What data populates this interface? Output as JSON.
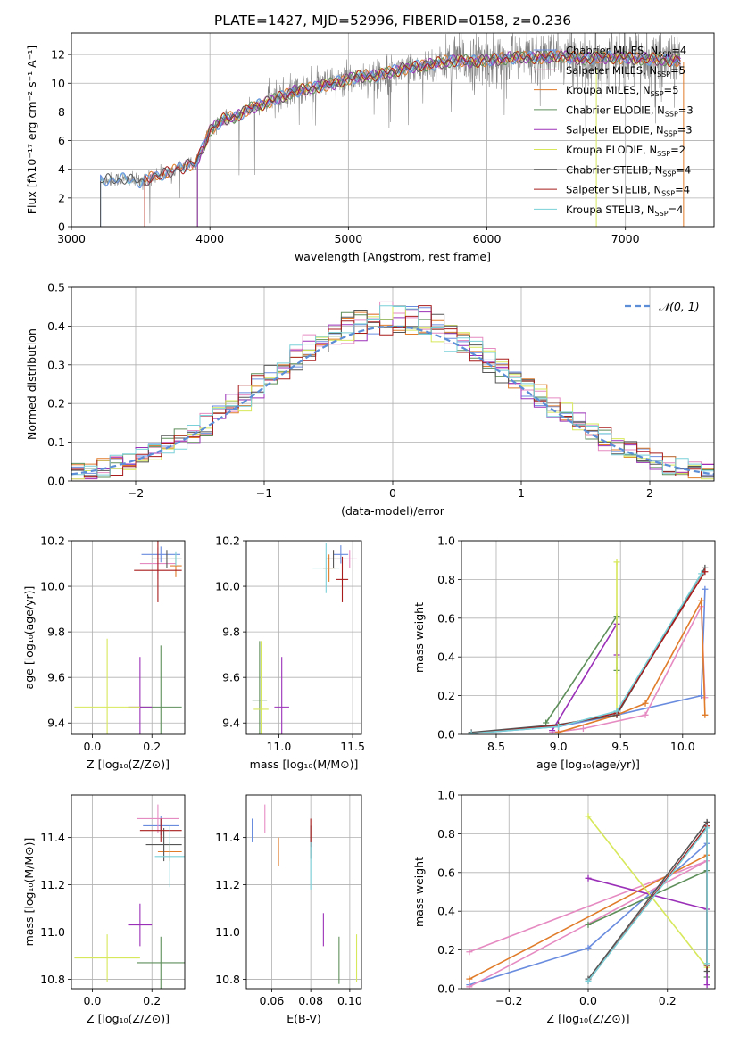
{
  "figure_title": "PLATE=1427, MJD=52996, FIBERID=0158, z=0.236",
  "colors": {
    "chabrier_miles": "#6a8cdf",
    "salpeter_miles": "#e68ac2",
    "kroupa_miles": "#e07c2a",
    "chabrier_elodie": "#5e8f5a",
    "salpeter_elodie": "#9b30b8",
    "kroupa_elodie": "#d7e85a",
    "chabrier_stelib": "#555555",
    "salpeter_stelib": "#a81c1c",
    "kroupa_stelib": "#7ad0d8",
    "spectrum": "#808080",
    "normal": "#5b8ed6"
  },
  "legend_entries": [
    {
      "key": "chabrier_miles",
      "label": "Chabrier MILES, N",
      "sub": "SSP",
      "suffix": "=4"
    },
    {
      "key": "salpeter_miles",
      "label": "Salpeter MILES, N",
      "sub": "SSP",
      "suffix": "=5"
    },
    {
      "key": "kroupa_miles",
      "label": "Kroupa MILES, N",
      "sub": "SSP",
      "suffix": "=5"
    },
    {
      "key": "chabrier_elodie",
      "label": "Chabrier ELODIE, N",
      "sub": "SSP",
      "suffix": "=3"
    },
    {
      "key": "salpeter_elodie",
      "label": "Salpeter ELODIE, N",
      "sub": "SSP",
      "suffix": "=3"
    },
    {
      "key": "kroupa_elodie",
      "label": "Kroupa ELODIE, N",
      "sub": "SSP",
      "suffix": "=2"
    },
    {
      "key": "chabrier_stelib",
      "label": "Chabrier STELIB, N",
      "sub": "SSP",
      "suffix": "=4"
    },
    {
      "key": "salpeter_stelib",
      "label": "Salpeter STELIB, N",
      "sub": "SSP",
      "suffix": "=4"
    },
    {
      "key": "kroupa_stelib",
      "label": "Kroupa STELIB, N",
      "sub": "SSP",
      "suffix": "=4"
    }
  ],
  "chart_data": [
    {
      "id": "spectrum",
      "type": "line",
      "xlabel": "wavelength [Angstrom, rest frame]",
      "ylabel": "Flux [fλ10⁻¹⁷ erg cm⁻² s⁻¹ A⁻¹]",
      "xlim": [
        3000,
        7640
      ],
      "ylim": [
        0,
        13.5
      ],
      "xticks": [
        3000,
        4000,
        5000,
        6000,
        7000
      ],
      "yticks": [
        0,
        2,
        4,
        6,
        8,
        10,
        12
      ],
      "continuum": {
        "x": [
          3210,
          3300,
          3400,
          3500,
          3600,
          3700,
          3800,
          3900,
          3950,
          4000,
          4100,
          4200,
          4300,
          4400,
          4500,
          4600,
          4700,
          4800,
          4900,
          5000,
          5100,
          5200,
          5300,
          5400,
          5500,
          5600,
          5700,
          5800,
          5900,
          6000,
          6100,
          6200,
          6300,
          6400,
          6500,
          6600,
          6700,
          6800,
          6900,
          7000,
          7100,
          7200,
          7300,
          7400
        ],
        "y": [
          3.2,
          3.3,
          3.3,
          3.1,
          3.5,
          3.8,
          4.1,
          4.5,
          5.5,
          6.7,
          7.5,
          7.7,
          8.3,
          8.6,
          9.0,
          9.4,
          9.6,
          9.8,
          10.0,
          10.3,
          10.5,
          10.5,
          10.8,
          11.0,
          11.2,
          11.3,
          11.5,
          11.6,
          11.5,
          11.6,
          11.7,
          11.8,
          11.8,
          11.8,
          11.9,
          11.8,
          11.7,
          11.8,
          11.8,
          11.8,
          11.7,
          11.7,
          11.6,
          11.6
        ]
      }
    },
    {
      "id": "residuals",
      "type": "histogram",
      "xlabel": "(data-model)/error",
      "ylabel": "Normed distribution",
      "xlim": [
        -2.5,
        2.5
      ],
      "ylim": [
        0,
        0.5
      ],
      "xticks": [
        -2,
        -1,
        0,
        1,
        2
      ],
      "yticks": [
        0.0,
        0.1,
        0.2,
        0.3,
        0.4,
        0.5
      ],
      "bin_width": 0.1,
      "legend": "𝒩(0, 1)"
    },
    {
      "id": "age_vs_Z",
      "type": "errorbar",
      "xlabel": "Z [log₁₀(Z/Z⊙)]",
      "ylabel": "age  [log₁₀(age/yr)]",
      "xlim": [
        -0.07,
        0.31
      ],
      "ylim": [
        9.35,
        10.2
      ],
      "xticks": [
        0.0,
        0.2
      ],
      "yticks": [
        9.4,
        9.6,
        9.8,
        10.0,
        10.2
      ],
      "points": [
        {
          "key": "chabrier_miles",
          "x": 0.23,
          "xerr": 0.065,
          "y": 10.14,
          "yerr": 0.035
        },
        {
          "key": "salpeter_miles",
          "x": 0.22,
          "xerr": 0.06,
          "y": 10.1,
          "yerr": 0.07
        },
        {
          "key": "kroupa_miles",
          "x": 0.28,
          "xerr": 0.02,
          "y": 10.09,
          "yerr": 0.05
        },
        {
          "key": "chabrier_elodie",
          "x": 0.23,
          "xerr": 0.07,
          "y": 9.47,
          "yerr": 0.27
        },
        {
          "key": "salpeter_elodie",
          "x": 0.16,
          "xerr": 0.04,
          "y": 9.47,
          "yerr": 0.22
        },
        {
          "key": "kroupa_elodie",
          "x": 0.05,
          "xerr": 0.11,
          "y": 9.47,
          "yerr": 0.3
        },
        {
          "key": "chabrier_stelib",
          "x": 0.25,
          "xerr": 0.05,
          "y": 10.12,
          "yerr": 0.04
        },
        {
          "key": "salpeter_stelib",
          "x": 0.22,
          "xerr": 0.08,
          "y": 10.07,
          "yerr": 0.14
        },
        {
          "key": "kroupa_stelib",
          "x": 0.28,
          "xerr": 0.015,
          "y": 10.12,
          "yerr": 0.03
        }
      ]
    },
    {
      "id": "age_vs_mass",
      "type": "errorbar",
      "xlabel": "mass [log₁₀(M/M⊙)]",
      "xlim": [
        10.78,
        11.56
      ],
      "ylim": [
        9.35,
        10.2
      ],
      "xticks": [
        11.0,
        11.5
      ],
      "yticks": [
        9.4,
        9.6,
        9.8,
        10.0,
        10.2
      ],
      "points": [
        {
          "key": "chabrier_miles",
          "x": 11.42,
          "xerr": 0.05,
          "y": 10.14,
          "yerr": 0.04
        },
        {
          "key": "salpeter_miles",
          "x": 11.48,
          "xerr": 0.05,
          "y": 10.12,
          "yerr": 0.04
        },
        {
          "key": "kroupa_miles",
          "x": 11.34,
          "xerr": 0.04,
          "y": 10.08,
          "yerr": 0.06
        },
        {
          "key": "chabrier_elodie",
          "x": 10.87,
          "xerr": 0.05,
          "y": 9.5,
          "yerr": 0.26
        },
        {
          "key": "salpeter_elodie",
          "x": 11.02,
          "xerr": 0.05,
          "y": 9.47,
          "yerr": 0.22
        },
        {
          "key": "kroupa_elodie",
          "x": 10.88,
          "xerr": 0.05,
          "y": 9.46,
          "yerr": 0.3
        },
        {
          "key": "chabrier_stelib",
          "x": 11.37,
          "xerr": 0.05,
          "y": 10.12,
          "yerr": 0.04
        },
        {
          "key": "salpeter_stelib",
          "x": 11.43,
          "xerr": 0.04,
          "y": 10.03,
          "yerr": 0.1
        },
        {
          "key": "kroupa_stelib",
          "x": 11.32,
          "xerr": 0.09,
          "y": 10.08,
          "yerr": 0.11
        }
      ]
    },
    {
      "id": "mass_weight_vs_age",
      "type": "line",
      "xlabel": "age  [log₁₀(age/yr)]",
      "ylabel": "mass weight",
      "xlim": [
        8.22,
        10.26
      ],
      "ylim": [
        0,
        1.0
      ],
      "xticks": [
        8.5,
        9.0,
        9.5,
        10.0
      ],
      "yticks": [
        0.0,
        0.2,
        0.4,
        0.6,
        0.8,
        1.0
      ],
      "series": [
        {
          "key": "chabrier_miles",
          "x": [
            8.3,
            9.0,
            9.47,
            10.15,
            10.18
          ],
          "y": [
            0.005,
            0.04,
            0.1,
            0.2,
            0.75
          ]
        },
        {
          "key": "salpeter_miles",
          "x": [
            8.95,
            9.2,
            9.7,
            10.15,
            10.18
          ],
          "y": [
            0.01,
            0.03,
            0.1,
            0.66,
            0.19
          ]
        },
        {
          "key": "kroupa_miles",
          "x": [
            9.0,
            9.47,
            9.7,
            10.15,
            10.18
          ],
          "y": [
            0.01,
            0.1,
            0.16,
            0.69,
            0.1
          ]
        },
        {
          "key": "chabrier_elodie",
          "x": [
            8.9,
            9.47,
            9.47
          ],
          "y": [
            0.06,
            0.61,
            0.33
          ]
        },
        {
          "key": "salpeter_elodie",
          "x": [
            8.95,
            9.47,
            9.47
          ],
          "y": [
            0.02,
            0.57,
            0.41
          ]
        },
        {
          "key": "kroupa_elodie",
          "x": [
            9.47,
            9.47
          ],
          "y": [
            0.11,
            0.89
          ]
        },
        {
          "key": "chabrier_stelib",
          "x": [
            8.3,
            9.0,
            9.47,
            10.18
          ],
          "y": [
            0.01,
            0.05,
            0.1,
            0.86
          ]
        },
        {
          "key": "salpeter_stelib",
          "x": [
            8.3,
            9.0,
            9.47,
            10.18
          ],
          "y": [
            0.005,
            0.045,
            0.11,
            0.84
          ]
        },
        {
          "key": "kroupa_stelib",
          "x": [
            8.3,
            9.0,
            9.47,
            10.15
          ],
          "y": [
            0.005,
            0.04,
            0.12,
            0.83
          ]
        }
      ]
    },
    {
      "id": "mass_vs_Z",
      "type": "errorbar",
      "xlabel": "Z [log₁₀(Z/Z⊙)]",
      "ylabel": "mass [log₁₀(M/M⊙)]",
      "xlim": [
        -0.07,
        0.31
      ],
      "ylim": [
        10.76,
        11.58
      ],
      "xticks": [
        0.0,
        0.2
      ],
      "yticks": [
        10.8,
        11.0,
        11.2,
        11.4
      ],
      "points": [
        {
          "key": "chabrier_miles",
          "x": 0.23,
          "xerr": 0.06,
          "y": 11.45,
          "yerr": 0.04
        },
        {
          "key": "salpeter_miles",
          "x": 0.22,
          "xerr": 0.07,
          "y": 11.48,
          "yerr": 0.06
        },
        {
          "key": "kroupa_miles",
          "x": 0.26,
          "xerr": 0.04,
          "y": 11.34,
          "yerr": 0.04
        },
        {
          "key": "chabrier_elodie",
          "x": 0.23,
          "xerr": 0.08,
          "y": 10.87,
          "yerr": 0.11
        },
        {
          "key": "salpeter_elodie",
          "x": 0.16,
          "xerr": 0.04,
          "y": 11.03,
          "yerr": 0.09
        },
        {
          "key": "kroupa_elodie",
          "x": 0.05,
          "xerr": 0.11,
          "y": 10.89,
          "yerr": 0.1
        },
        {
          "key": "chabrier_stelib",
          "x": 0.24,
          "xerr": 0.06,
          "y": 11.37,
          "yerr": 0.07
        },
        {
          "key": "salpeter_stelib",
          "x": 0.23,
          "xerr": 0.07,
          "y": 11.43,
          "yerr": 0.05
        },
        {
          "key": "kroupa_stelib",
          "x": 0.26,
          "xerr": 0.05,
          "y": 11.32,
          "yerr": 0.13
        }
      ]
    },
    {
      "id": "mass_vs_EBV",
      "type": "errorbar",
      "xlabel": "E(B-V)",
      "xlim": [
        0.047,
        0.106
      ],
      "ylim": [
        10.76,
        11.58
      ],
      "xticks": [
        0.06,
        0.08,
        0.1
      ],
      "yticks": [
        10.8,
        11.0,
        11.2,
        11.4
      ],
      "points": [
        {
          "key": "chabrier_miles",
          "x": 0.05,
          "y": 11.43,
          "yerr": 0.05
        },
        {
          "key": "salpeter_miles",
          "x": 0.0565,
          "y": 11.48,
          "yerr": 0.06
        },
        {
          "key": "kroupa_miles",
          "x": 0.0635,
          "y": 11.34,
          "yerr": 0.06
        },
        {
          "key": "chabrier_elodie",
          "x": 0.0945,
          "y": 10.88,
          "yerr": 0.1
        },
        {
          "key": "salpeter_elodie",
          "x": 0.0865,
          "y": 11.01,
          "yerr": 0.07
        },
        {
          "key": "kroupa_elodie",
          "x": 0.1035,
          "y": 10.89,
          "yerr": 0.1
        },
        {
          "key": "chabrier_stelib",
          "x": 0.08,
          "y": 11.38,
          "yerr": 0.07
        },
        {
          "key": "salpeter_stelib",
          "x": 0.08,
          "y": 11.42,
          "yerr": 0.06
        },
        {
          "key": "kroupa_stelib",
          "x": 0.08,
          "y": 11.28,
          "yerr": 0.1
        }
      ]
    },
    {
      "id": "mass_weight_vs_Z",
      "type": "line",
      "xlabel": "Z [log₁₀(Z/Z⊙)]",
      "ylabel": "mass weight",
      "xlim": [
        -0.32,
        0.32
      ],
      "ylim": [
        0,
        1.0
      ],
      "xticks": [
        -0.2,
        0.0,
        0.2
      ],
      "yticks": [
        0.0,
        0.2,
        0.4,
        0.6,
        0.8,
        1.0
      ],
      "series": [
        {
          "key": "chabrier_miles",
          "x": [
            -0.3,
            0.0,
            0.3
          ],
          "y": [
            0.02,
            0.21,
            0.75
          ]
        },
        {
          "key": "salpeter_miles",
          "x": [
            -0.3,
            0.3,
            -0.3
          ],
          "y": [
            0.19,
            0.66,
            0.01
          ]
        },
        {
          "key": "kroupa_miles",
          "x": [
            -0.3,
            0.3
          ],
          "y": [
            0.05,
            0.69
          ]
        },
        {
          "key": "chabrier_elodie",
          "x": [
            0.0,
            0.3,
            0.3
          ],
          "y": [
            0.33,
            0.61,
            0.06
          ]
        },
        {
          "key": "salpeter_elodie",
          "x": [
            0.0,
            0.3,
            0.3
          ],
          "y": [
            0.57,
            0.41,
            0.02
          ]
        },
        {
          "key": "kroupa_elodie",
          "x": [
            0.0,
            0.3
          ],
          "y": [
            0.89,
            0.11
          ]
        },
        {
          "key": "chabrier_stelib",
          "x": [
            0.0,
            0.3,
            0.3
          ],
          "y": [
            0.05,
            0.86,
            0.09
          ]
        },
        {
          "key": "salpeter_stelib",
          "x": [
            0.0,
            0.3,
            0.3
          ],
          "y": [
            0.04,
            0.84,
            0.12
          ]
        },
        {
          "key": "kroupa_stelib",
          "x": [
            0.0,
            0.3,
            0.3
          ],
          "y": [
            0.04,
            0.83,
            0.13
          ]
        }
      ]
    }
  ]
}
